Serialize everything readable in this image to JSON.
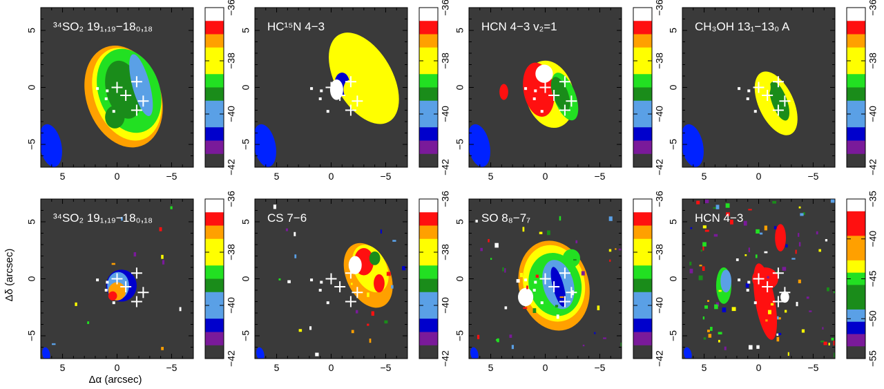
{
  "figure": {
    "xlabel": "Δα (arcsec)",
    "ylabel": "Δδ (arcsec)"
  },
  "chart_data": {
    "type": "heatmap",
    "x_ticks": [
      "5",
      "0",
      "−5"
    ],
    "y_ticks": [
      "−5",
      "0",
      "5"
    ],
    "xlim": [
      7,
      -7
    ],
    "ylim": [
      -7,
      7
    ],
    "palette": {
      "background": "#3a3a3a",
      "white": "#ffffff",
      "red": "#ff1010",
      "orange": "#ffa000",
      "yellow": "#ffff00",
      "green": "#1a8c1a",
      "lime": "#22e022",
      "lightblue": "#5aa0e6",
      "blue": "#0000cc",
      "purple": "#7a1a9a",
      "beam": "#0022ff"
    },
    "crosses": [
      [
        0.0,
        0.0
      ],
      [
        -1.8,
        0.5
      ],
      [
        -0.8,
        -0.7
      ],
      [
        -2.4,
        -1.2
      ],
      [
        -1.8,
        -2.0
      ]
    ],
    "dots": [
      [
        1.8,
        -0.1
      ],
      [
        0.9,
        -0.3
      ],
      [
        1.0,
        -1.0
      ],
      [
        0.3,
        -2.1
      ]
    ],
    "panels": [
      {
        "label": "³⁴SO₂ 19₁,₁₉−18₀,₁₈",
        "cbar_ticks": [
          "−36",
          "−38",
          "−40",
          "−42"
        ],
        "beam": [
          -6.1,
          5.1,
          1.0,
          1.9,
          -12
        ]
      },
      {
        "label": "HC¹⁵N 4−3",
        "cbar_ticks": [
          "−36",
          "−38",
          "−40",
          "−42"
        ],
        "beam": [
          -6.1,
          5.1,
          1.0,
          1.9,
          -12
        ]
      },
      {
        "label": "HCN 4−3 v₂=1",
        "cbar_ticks": [
          "−36",
          "−38",
          "−40",
          "−42"
        ],
        "beam": [
          -6.1,
          5.1,
          1.0,
          1.9,
          -12
        ]
      },
      {
        "label": "CH₃OH 13₁−13₀ A",
        "cbar_ticks": [
          "−36",
          "−38",
          "−40",
          "−42"
        ],
        "beam": [
          -6.1,
          5.1,
          1.0,
          1.9,
          -12
        ]
      },
      {
        "label": "³⁴SO₂ 19₁,₁₉−18₀,₁₈",
        "cbar_ticks": [
          "−36",
          "−38",
          "−40",
          "−42"
        ],
        "beam": [
          -6.5,
          6.6,
          0.35,
          0.6,
          -12
        ]
      },
      {
        "label": "CS 7−6",
        "cbar_ticks": [
          "−36",
          "−38",
          "−40",
          "−42"
        ],
        "beam": [
          -6.5,
          6.6,
          0.35,
          0.6,
          -12
        ]
      },
      {
        "label": "SO 8₈−7₇",
        "cbar_ticks": [
          "−36",
          "−38",
          "−40",
          "−42"
        ],
        "beam": [
          -6.5,
          6.6,
          0.35,
          0.6,
          -12
        ]
      },
      {
        "label": "HCN 4−3",
        "cbar_ticks": [
          "−35",
          "−40",
          "−45",
          "−50",
          "−55"
        ],
        "beam": [
          -6.5,
          6.6,
          0.35,
          0.6,
          -12
        ]
      }
    ]
  }
}
